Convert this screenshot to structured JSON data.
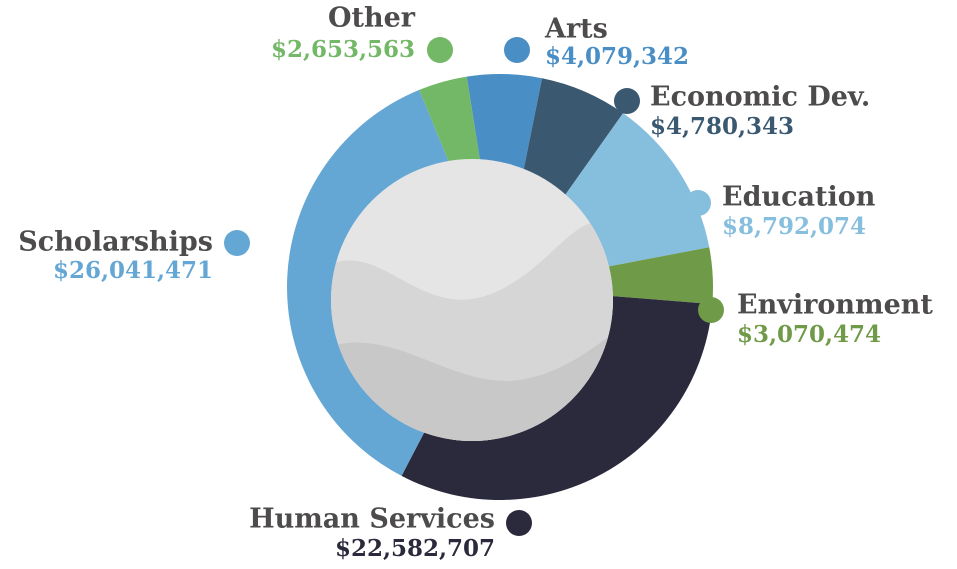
{
  "chart_data": {
    "type": "pie",
    "categories": [
      "Arts",
      "Economic Dev.",
      "Education",
      "Environment",
      "Human Services",
      "Scholarships",
      "Other"
    ],
    "values": [
      4079342,
      4780343,
      8792074,
      3070474,
      22582707,
      26041471,
      2653563
    ],
    "value_labels": [
      "$4,079,342",
      "$4,780,343",
      "$8,792,074",
      "$3,070,474",
      "$22,582,707",
      "$26,041,471",
      "$2,653,563"
    ],
    "colors": [
      "#4a8ec6",
      "#3a5870",
      "#86bede",
      "#6f9a48",
      "#2a2a3c",
      "#65a7d4",
      "#72b866"
    ]
  }
}
